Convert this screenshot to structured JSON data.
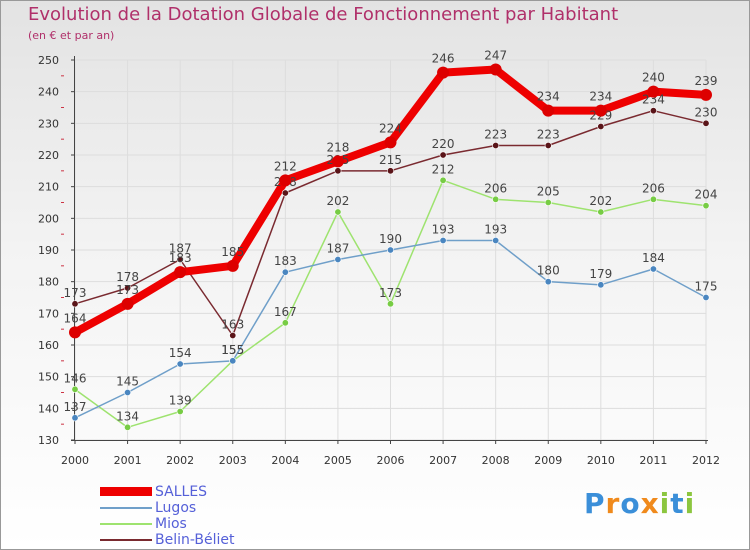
{
  "header": {
    "title": "Evolution de la Dotation Globale de Fonctionnement par Habitant",
    "subtitle": "(en € et par an)"
  },
  "chart_data": {
    "type": "line",
    "title": "Evolution de la Dotation Globale de Fonctionnement par Habitant",
    "subtitle": "(en € et par an)",
    "xlabel": "",
    "ylabel": "",
    "x": [
      2000,
      2001,
      2002,
      2003,
      2004,
      2005,
      2006,
      2007,
      2008,
      2009,
      2010,
      2011,
      2012
    ],
    "ylim": [
      130,
      250
    ],
    "yticks": [
      130,
      140,
      150,
      160,
      170,
      180,
      190,
      200,
      210,
      220,
      230,
      240,
      250
    ],
    "grid": true,
    "series": [
      {
        "name": "SALLES",
        "color": "#ee0000",
        "marker": "#dd0000",
        "emphasis": true,
        "values": [
          164,
          173,
          183,
          185,
          212,
          218,
          224,
          246,
          247,
          234,
          234,
          240,
          239
        ]
      },
      {
        "name": "Lugos",
        "color": "#6f9fc9",
        "marker": "#4a86c0",
        "emphasis": false,
        "values": [
          137,
          145,
          154,
          155,
          183,
          187,
          190,
          193,
          193,
          180,
          179,
          184,
          175
        ]
      },
      {
        "name": "Mios",
        "color": "#9ee36f",
        "marker": "#77cc44",
        "emphasis": false,
        "values": [
          146,
          134,
          139,
          155,
          167,
          202,
          173,
          212,
          206,
          205,
          202,
          206,
          204
        ]
      },
      {
        "name": "Belin-Béliet",
        "color": "#7a2a30",
        "marker": "#5a1418",
        "emphasis": false,
        "values": [
          173,
          178,
          187,
          163,
          208,
          215,
          215,
          220,
          223,
          223,
          229,
          234,
          230
        ]
      }
    ]
  },
  "logo": {
    "letters": [
      "P",
      "r",
      "o",
      "x",
      "i",
      "t",
      "i"
    ],
    "colors": [
      "#3b8fd9",
      "#f08a1c",
      "#3b8fd9",
      "#f08a1c",
      "#8cc63f",
      "#3b8fd9",
      "#8cc63f"
    ]
  }
}
